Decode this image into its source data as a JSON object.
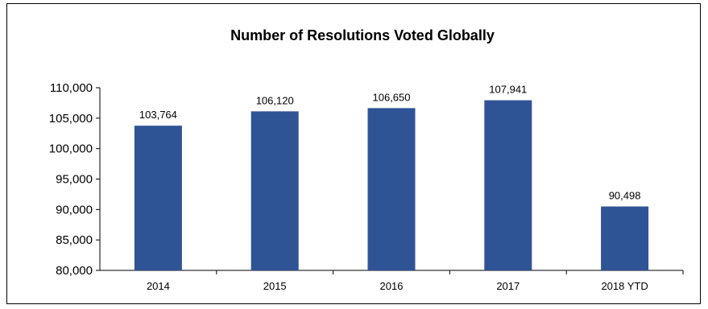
{
  "chart_data": {
    "type": "bar",
    "title": "Number of Resolutions Voted Globally",
    "xlabel": "",
    "ylabel": "",
    "categories": [
      "2014",
      "2015",
      "2016",
      "2017",
      "2018 YTD"
    ],
    "values": [
      103764,
      106120,
      106650,
      107941,
      90498
    ],
    "data_labels": [
      "103,764",
      "106,120",
      "106,650",
      "107,941",
      "90,498"
    ],
    "ylim": [
      80000,
      110000
    ],
    "yticks": [
      "80,000",
      "85,000",
      "90,000",
      "95,000",
      "100,000",
      "105,000",
      "110,000"
    ],
    "ytick_values": [
      80000,
      85000,
      90000,
      95000,
      100000,
      105000,
      110000
    ],
    "bar_color": "#2f5496",
    "grid": false,
    "legend": "none"
  }
}
